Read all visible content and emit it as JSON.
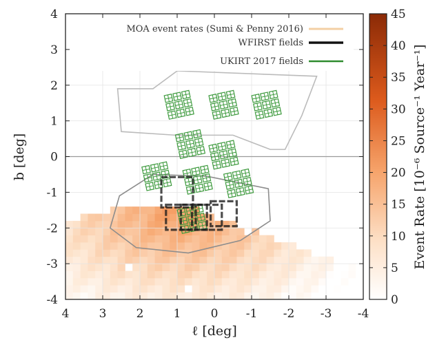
{
  "chart_data": {
    "type": "heatmap",
    "xlabel": "ℓ [deg]",
    "ylabel": "b [deg]",
    "xlim": [
      4,
      -4
    ],
    "ylim": [
      -4,
      4
    ],
    "xticks": [
      "4",
      "3",
      "2",
      "1",
      "0",
      "-1",
      "-2",
      "-3",
      "-4"
    ],
    "xtick_values": [
      4,
      3,
      2,
      1,
      0,
      -1,
      -2,
      -3,
      -4
    ],
    "yticks": [
      "4",
      "3",
      "2",
      "1",
      "0",
      "-1",
      "-2",
      "-3",
      "-4"
    ],
    "ytick_values": [
      4,
      3,
      2,
      1,
      0,
      -1,
      -2,
      -3,
      -4
    ],
    "grid": true,
    "legend_placement": "top-right",
    "legend": [
      {
        "label": "MOA event rates (Sumi & Penny 2016)",
        "color": "#f3cfa4"
      },
      {
        "label": "WFIRST fields",
        "color": "#111111"
      },
      {
        "label": "UKIRT 2017 fields",
        "color": "#2e8b2e"
      }
    ],
    "colorbar": {
      "label": "Event Rate [10⁻⁶ Source⁻¹ Year⁻¹]",
      "range": [
        0,
        45
      ],
      "ticks": [
        "0",
        "5",
        "10",
        "15",
        "20",
        "25",
        "30",
        "35",
        "40",
        "45"
      ],
      "tick_values": [
        0,
        5,
        10,
        15,
        20,
        25,
        30,
        35,
        40,
        45
      ],
      "color_low": "#ffffff",
      "color_high": "#8b2a06"
    },
    "moa_boundary_upper": [
      [
        1.65,
        1.9
      ],
      [
        1.0,
        2.4
      ],
      [
        -2.75,
        2.25
      ],
      [
        -2.35,
        1.15
      ],
      [
        -1.9,
        0.2
      ],
      [
        -1.5,
        0.2
      ],
      [
        -0.5,
        0.6
      ],
      [
        1.05,
        0.6
      ],
      [
        2.5,
        0.7
      ],
      [
        2.6,
        1.9
      ]
    ],
    "moa_boundary_lower": [
      [
        1.65,
        -0.5
      ],
      [
        0.2,
        -0.55
      ],
      [
        -1.45,
        -0.9
      ],
      [
        -1.5,
        -1.8
      ],
      [
        -0.7,
        -2.35
      ],
      [
        0.7,
        -2.7
      ],
      [
        2.1,
        -2.55
      ],
      [
        2.8,
        -2.0
      ],
      [
        2.55,
        -1.1
      ],
      [
        1.65,
        -0.5
      ]
    ],
    "wfirst_fields": [
      {
        "center": [
          1.0,
          -1.0
        ],
        "width": 0.85,
        "height": 0.85
      },
      {
        "center": [
          0.95,
          -1.7
        ],
        "width": 0.7,
        "height": 0.7
      },
      {
        "center": [
          0.55,
          -1.7
        ],
        "width": 0.7,
        "height": 0.7
      },
      {
        "center": [
          0.15,
          -1.7
        ],
        "width": 0.7,
        "height": 0.7
      },
      {
        "center": [
          -0.25,
          -1.6
        ],
        "width": 0.7,
        "height": 0.7
      }
    ],
    "ukirt_fields": [
      {
        "center": [
          0.95,
          1.45
        ],
        "angle": 12
      },
      {
        "center": [
          -0.25,
          1.45
        ],
        "angle": 12
      },
      {
        "center": [
          -1.4,
          1.45
        ],
        "angle": 12
      },
      {
        "center": [
          0.65,
          0.35
        ],
        "angle": 12
      },
      {
        "center": [
          -0.25,
          0.05
        ],
        "angle": 12
      },
      {
        "center": [
          1.55,
          -0.55
        ],
        "angle": 12
      },
      {
        "center": [
          0.45,
          -0.65
        ],
        "angle": 12
      },
      {
        "center": [
          -0.65,
          -0.75
        ],
        "angle": 12
      },
      {
        "center": [
          0.6,
          -1.75
        ],
        "angle": 12
      }
    ]
  }
}
